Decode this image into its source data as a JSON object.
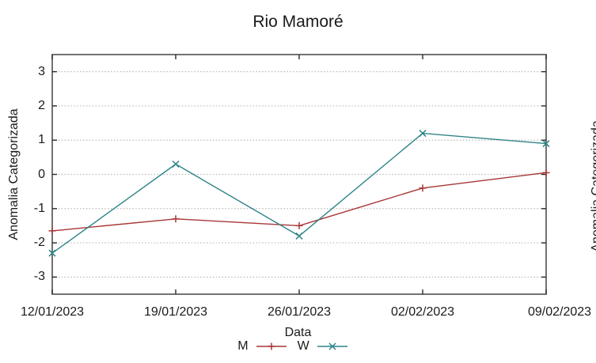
{
  "title": "Rio Mamoré",
  "colors": {
    "series_m": "#a93636",
    "series_w": "#2e8487",
    "border": "#4f4f4f",
    "tick": "#2a2a2a",
    "grid": "#b9b9b9",
    "text": "#1a1a1a"
  },
  "chart_data": {
    "type": "line",
    "title": "Rio Mamoré",
    "xlabel": "Data",
    "ylabel": "Anomalia Categorizada",
    "categories": [
      "12/01/2023",
      "19/01/2023",
      "26/01/2023",
      "02/02/2023",
      "09/02/2023"
    ],
    "yticks": [
      -3,
      -2,
      -1,
      0,
      1,
      2,
      3
    ],
    "ylim": [
      -3.5,
      3.5
    ],
    "grid": "horizontal dotted",
    "legend_position": "bottom-center",
    "series": [
      {
        "name": "M",
        "marker": "plus",
        "color": "#a93636",
        "values": [
          -1.65,
          -1.3,
          -1.5,
          -0.4,
          0.05
        ]
      },
      {
        "name": "W",
        "marker": "cross",
        "color": "#2e8487",
        "values": [
          -2.3,
          0.3,
          -1.8,
          1.2,
          0.9
        ]
      }
    ]
  },
  "adjacent_chart_fragment": {
    "ylabel": "Anomalia Categorizada"
  }
}
